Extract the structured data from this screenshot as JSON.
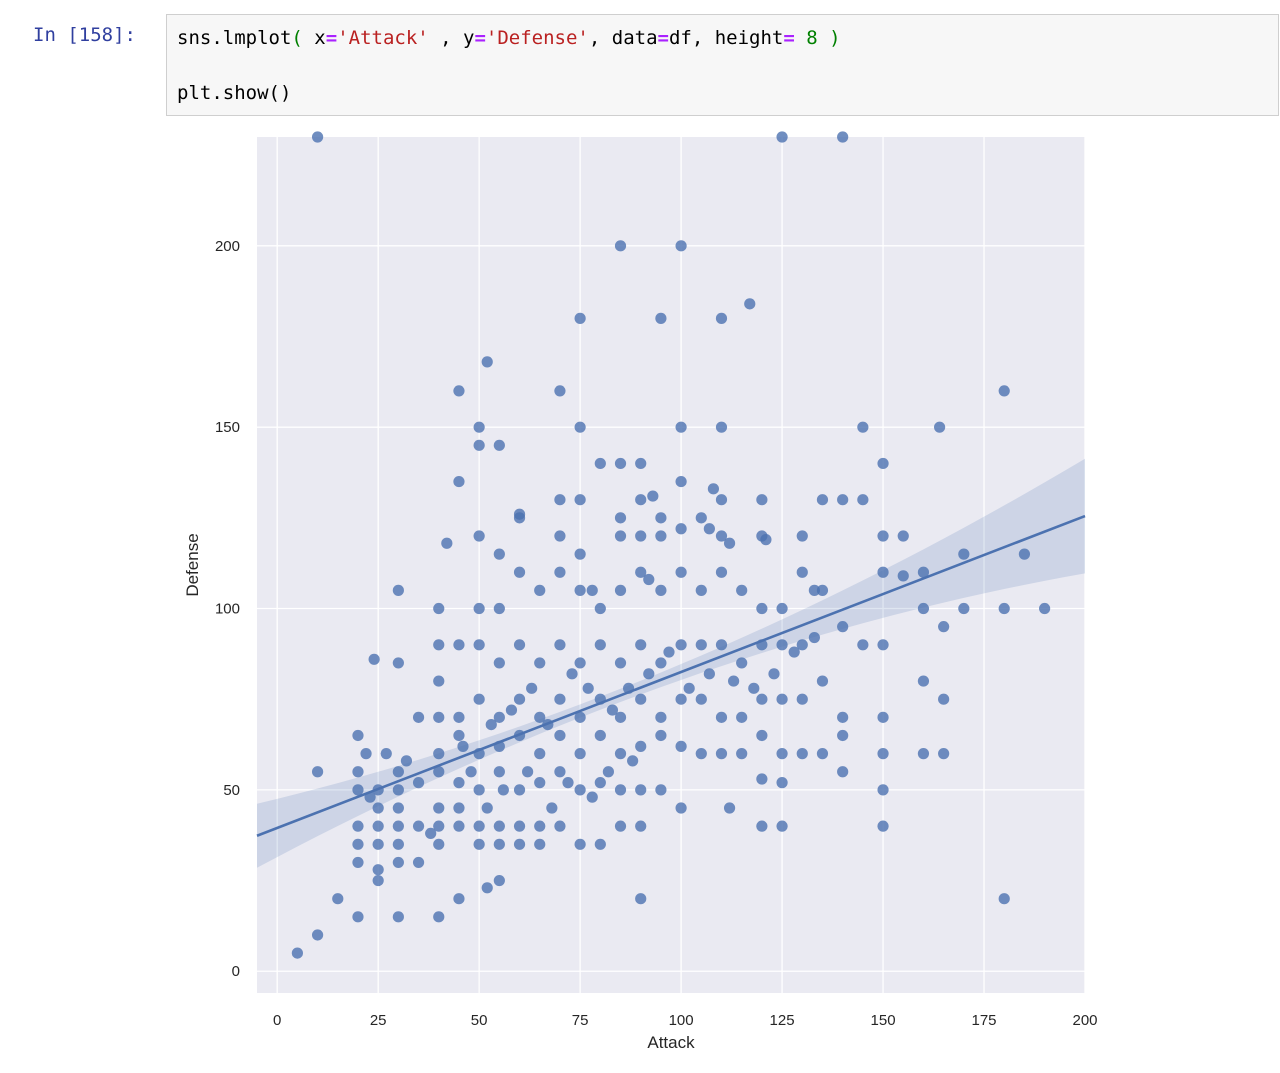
{
  "cell": {
    "prompt": "In [158]:",
    "code_line1": {
      "t1": "sns.lmplot",
      "t2": "(",
      "t3": " x",
      "t4": "=",
      "t5": "'Attack'",
      "t6": " , y",
      "t7": "=",
      "t8": "'Defense'",
      "t9": ", data",
      "t10": "=",
      "t11": "df, height",
      "t12": "=",
      "t13": " 8",
      "t14": " )"
    },
    "code_line2": "plt.show()"
  },
  "colors": {
    "point": "#4C72B0",
    "plot_bg": "#EAEAF2",
    "grid": "#ffffff",
    "prompt": "#303F9F"
  },
  "chart_data": {
    "type": "scatter",
    "xlabel": "Attack",
    "ylabel": "Defense",
    "xlim": [
      -5,
      200
    ],
    "ylim": [
      -6,
      230
    ],
    "xticks": [
      0,
      25,
      50,
      75,
      100,
      125,
      150,
      175,
      200
    ],
    "yticks": [
      0,
      50,
      100,
      150,
      200
    ],
    "grid": true,
    "regression": {
      "slope": 0.43,
      "intercept": 39.5,
      "ci": true
    },
    "points": [
      [
        10,
        230
      ],
      [
        125,
        230
      ],
      [
        140,
        230
      ],
      [
        85,
        200
      ],
      [
        100,
        200
      ],
      [
        117,
        184
      ],
      [
        75,
        180
      ],
      [
        95,
        180
      ],
      [
        110,
        180
      ],
      [
        52,
        168
      ],
      [
        45,
        160
      ],
      [
        70,
        160
      ],
      [
        180,
        160
      ],
      [
        50,
        150
      ],
      [
        50,
        145
      ],
      [
        55,
        145
      ],
      [
        75,
        150
      ],
      [
        100,
        150
      ],
      [
        110,
        150
      ],
      [
        145,
        150
      ],
      [
        164,
        150
      ],
      [
        45,
        135
      ],
      [
        80,
        140
      ],
      [
        85,
        140
      ],
      [
        90,
        140
      ],
      [
        150,
        140
      ],
      [
        70,
        130
      ],
      [
        75,
        130
      ],
      [
        85,
        125
      ],
      [
        90,
        130
      ],
      [
        93,
        131
      ],
      [
        95,
        125
      ],
      [
        100,
        135
      ],
      [
        108,
        133
      ],
      [
        110,
        130
      ],
      [
        120,
        130
      ],
      [
        135,
        130
      ],
      [
        140,
        130
      ],
      [
        145,
        130
      ],
      [
        42,
        118
      ],
      [
        50,
        120
      ],
      [
        55,
        115
      ],
      [
        60,
        126
      ],
      [
        60,
        125
      ],
      [
        70,
        120
      ],
      [
        75,
        115
      ],
      [
        85,
        120
      ],
      [
        90,
        120
      ],
      [
        95,
        120
      ],
      [
        100,
        122
      ],
      [
        105,
        125
      ],
      [
        107,
        122
      ],
      [
        110,
        120
      ],
      [
        112,
        118
      ],
      [
        120,
        120
      ],
      [
        121,
        119
      ],
      [
        130,
        120
      ],
      [
        150,
        120
      ],
      [
        155,
        120
      ],
      [
        170,
        115
      ],
      [
        185,
        115
      ],
      [
        30,
        105
      ],
      [
        40,
        100
      ],
      [
        50,
        100
      ],
      [
        55,
        100
      ],
      [
        60,
        110
      ],
      [
        65,
        105
      ],
      [
        70,
        110
      ],
      [
        75,
        105
      ],
      [
        78,
        105
      ],
      [
        80,
        100
      ],
      [
        85,
        105
      ],
      [
        90,
        110
      ],
      [
        92,
        108
      ],
      [
        95,
        105
      ],
      [
        100,
        110
      ],
      [
        105,
        105
      ],
      [
        110,
        110
      ],
      [
        115,
        105
      ],
      [
        120,
        100
      ],
      [
        125,
        100
      ],
      [
        130,
        110
      ],
      [
        133,
        105
      ],
      [
        135,
        105
      ],
      [
        140,
        95
      ],
      [
        150,
        110
      ],
      [
        155,
        109
      ],
      [
        160,
        110
      ],
      [
        160,
        100
      ],
      [
        165,
        95
      ],
      [
        170,
        100
      ],
      [
        180,
        100
      ],
      [
        190,
        100
      ],
      [
        24,
        86
      ],
      [
        30,
        85
      ],
      [
        40,
        90
      ],
      [
        40,
        80
      ],
      [
        45,
        90
      ],
      [
        50,
        90
      ],
      [
        55,
        85
      ],
      [
        60,
        90
      ],
      [
        65,
        85
      ],
      [
        70,
        90
      ],
      [
        75,
        85
      ],
      [
        80,
        90
      ],
      [
        85,
        85
      ],
      [
        90,
        90
      ],
      [
        95,
        85
      ],
      [
        100,
        90
      ],
      [
        105,
        90
      ],
      [
        110,
        90
      ],
      [
        115,
        85
      ],
      [
        120,
        90
      ],
      [
        125,
        90
      ],
      [
        130,
        90
      ],
      [
        135,
        80
      ],
      [
        145,
        90
      ],
      [
        150,
        90
      ],
      [
        160,
        80
      ],
      [
        35,
        70
      ],
      [
        40,
        70
      ],
      [
        45,
        70
      ],
      [
        50,
        75
      ],
      [
        55,
        70
      ],
      [
        60,
        75
      ],
      [
        65,
        70
      ],
      [
        70,
        75
      ],
      [
        75,
        70
      ],
      [
        80,
        75
      ],
      [
        85,
        70
      ],
      [
        90,
        75
      ],
      [
        95,
        70
      ],
      [
        100,
        75
      ],
      [
        105,
        75
      ],
      [
        110,
        70
      ],
      [
        115,
        70
      ],
      [
        120,
        75
      ],
      [
        125,
        75
      ],
      [
        130,
        75
      ],
      [
        140,
        70
      ],
      [
        150,
        70
      ],
      [
        165,
        75
      ],
      [
        20,
        65
      ],
      [
        22,
        60
      ],
      [
        27,
        60
      ],
      [
        32,
        58
      ],
      [
        40,
        60
      ],
      [
        45,
        65
      ],
      [
        50,
        60
      ],
      [
        55,
        62
      ],
      [
        60,
        65
      ],
      [
        65,
        60
      ],
      [
        70,
        65
      ],
      [
        75,
        60
      ],
      [
        80,
        65
      ],
      [
        85,
        60
      ],
      [
        90,
        62
      ],
      [
        95,
        65
      ],
      [
        100,
        62
      ],
      [
        105,
        60
      ],
      [
        110,
        60
      ],
      [
        115,
        60
      ],
      [
        120,
        65
      ],
      [
        125,
        60
      ],
      [
        130,
        60
      ],
      [
        135,
        60
      ],
      [
        140,
        65
      ],
      [
        150,
        60
      ],
      [
        160,
        60
      ],
      [
        165,
        60
      ],
      [
        10,
        55
      ],
      [
        20,
        55
      ],
      [
        20,
        50
      ],
      [
        23,
        48
      ],
      [
        25,
        50
      ],
      [
        30,
        55
      ],
      [
        30,
        50
      ],
      [
        35,
        52
      ],
      [
        40,
        55
      ],
      [
        45,
        52
      ],
      [
        50,
        50
      ],
      [
        55,
        55
      ],
      [
        60,
        50
      ],
      [
        65,
        52
      ],
      [
        70,
        55
      ],
      [
        75,
        50
      ],
      [
        80,
        52
      ],
      [
        85,
        50
      ],
      [
        90,
        50
      ],
      [
        95,
        50
      ],
      [
        120,
        53
      ],
      [
        125,
        52
      ],
      [
        140,
        55
      ],
      [
        150,
        50
      ],
      [
        20,
        40
      ],
      [
        20,
        35
      ],
      [
        20,
        30
      ],
      [
        25,
        45
      ],
      [
        25,
        40
      ],
      [
        25,
        35
      ],
      [
        25,
        28
      ],
      [
        25,
        25
      ],
      [
        30,
        45
      ],
      [
        30,
        40
      ],
      [
        30,
        35
      ],
      [
        30,
        30
      ],
      [
        35,
        40
      ],
      [
        35,
        30
      ],
      [
        38,
        38
      ],
      [
        40,
        45
      ],
      [
        40,
        40
      ],
      [
        40,
        35
      ],
      [
        45,
        45
      ],
      [
        45,
        40
      ],
      [
        50,
        40
      ],
      [
        50,
        35
      ],
      [
        55,
        40
      ],
      [
        55,
        35
      ],
      [
        60,
        40
      ],
      [
        60,
        35
      ],
      [
        65,
        40
      ],
      [
        65,
        35
      ],
      [
        70,
        40
      ],
      [
        75,
        35
      ],
      [
        80,
        35
      ],
      [
        85,
        40
      ],
      [
        90,
        40
      ],
      [
        100,
        45
      ],
      [
        112,
        45
      ],
      [
        120,
        40
      ],
      [
        125,
        40
      ],
      [
        150,
        40
      ],
      [
        20,
        15
      ],
      [
        15,
        20
      ],
      [
        10,
        10
      ],
      [
        5,
        5
      ],
      [
        30,
        15
      ],
      [
        40,
        15
      ],
      [
        45,
        20
      ],
      [
        52,
        23
      ],
      [
        55,
        25
      ],
      [
        90,
        20
      ],
      [
        180,
        20
      ],
      [
        48,
        55
      ],
      [
        52,
        45
      ],
      [
        56,
        50
      ],
      [
        62,
        55
      ],
      [
        68,
        45
      ],
      [
        72,
        52
      ],
      [
        78,
        48
      ],
      [
        82,
        55
      ],
      [
        88,
        58
      ],
      [
        46,
        62
      ],
      [
        53,
        68
      ],
      [
        58,
        72
      ],
      [
        63,
        78
      ],
      [
        67,
        68
      ],
      [
        73,
        82
      ],
      [
        77,
        78
      ],
      [
        83,
        72
      ],
      [
        87,
        78
      ],
      [
        92,
        82
      ],
      [
        97,
        88
      ],
      [
        102,
        78
      ],
      [
        107,
        82
      ],
      [
        113,
        80
      ],
      [
        118,
        78
      ],
      [
        123,
        82
      ],
      [
        128,
        88
      ],
      [
        133,
        92
      ]
    ]
  }
}
